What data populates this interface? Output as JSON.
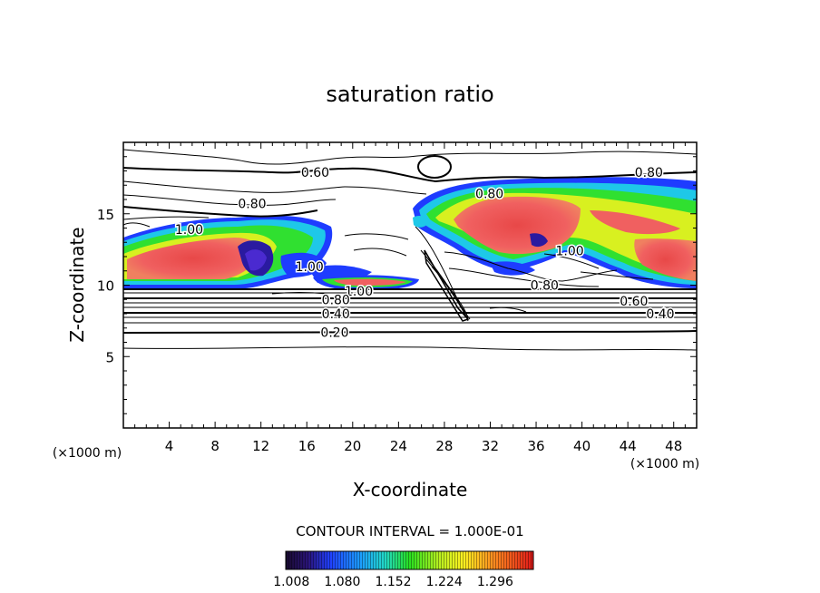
{
  "chart_data": {
    "type": "heatmap",
    "title": "saturation ratio",
    "xlabel": "X-coordinate",
    "ylabel": "Z-coordinate",
    "x_unit": "(×1000 m)",
    "y_unit": "(×1000 m)",
    "xlim": [
      0,
      50
    ],
    "ylim": [
      0,
      20
    ],
    "x_ticks": [
      4,
      8,
      12,
      16,
      20,
      24,
      28,
      32,
      36,
      40,
      44,
      48
    ],
    "x_tick_labels": [
      "4",
      "8",
      "12",
      "16",
      "20",
      "24",
      "28",
      "32",
      "36",
      "40",
      "44",
      "48"
    ],
    "y_ticks": [
      5,
      10,
      15
    ],
    "y_tick_labels": [
      "5",
      "10",
      "15"
    ],
    "contour_interval_text": "CONTOUR INTERVAL = 1.000E-01",
    "colorbar": {
      "min": 1.0,
      "max": 1.35,
      "tick_values": [
        1.008,
        1.08,
        1.152,
        1.224,
        1.296
      ],
      "tick_labels": [
        "1.008",
        "1.080",
        "1.152",
        "1.224",
        "1.296"
      ]
    },
    "contour_labels": [
      {
        "text": "0.60",
        "x": 15.5,
        "y": 17.9
      },
      {
        "text": "0.80",
        "x": 44.6,
        "y": 17.9
      },
      {
        "text": "0.80",
        "x": 10.0,
        "y": 15.7
      },
      {
        "text": "0.80",
        "x": 30.7,
        "y": 16.4
      },
      {
        "text": "1.00",
        "x": 4.5,
        "y": 13.9
      },
      {
        "text": "1.00",
        "x": 37.7,
        "y": 12.4
      },
      {
        "text": "0.80",
        "x": 35.5,
        "y": 10.0
      },
      {
        "text": "1.00",
        "x": 15.0,
        "y": 11.3
      },
      {
        "text": "1.00",
        "x": 19.3,
        "y": 9.6
      },
      {
        "text": "0.80",
        "x": 17.3,
        "y": 9.0
      },
      {
        "text": "0.60",
        "x": 43.3,
        "y": 8.9
      },
      {
        "text": "0.40",
        "x": 17.3,
        "y": 8.0
      },
      {
        "text": "0.40",
        "x": 45.6,
        "y": 8.0
      },
      {
        "text": "0.20",
        "x": 17.2,
        "y": 6.7
      }
    ],
    "supersaturated_regions": [
      {
        "x": [
          0,
          12
        ],
        "y": [
          9.5,
          14.0
        ],
        "peak": 1.3
      },
      {
        "x": [
          25,
          50
        ],
        "y": [
          10.0,
          17.0
        ],
        "peak": 1.3
      },
      {
        "x": [
          17,
          25.5
        ],
        "y": [
          9.6,
          10.6
        ],
        "peak": 1.3
      }
    ]
  }
}
